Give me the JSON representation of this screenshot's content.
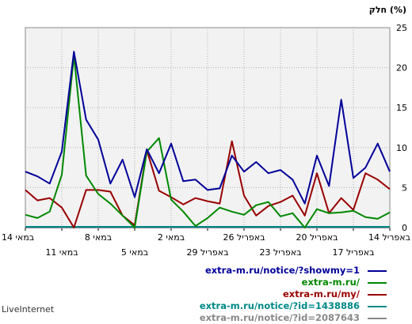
{
  "footer": {
    "brand": "LiveInternet"
  },
  "chart_data": {
    "type": "line",
    "ylabel": "חלק (%)",
    "ylim": [
      0,
      25
    ],
    "yticks": [
      0,
      5,
      10,
      15,
      20,
      25
    ],
    "grid": true,
    "x_labels_row1": [
      "14 במאי",
      "8 במאי",
      "2 במאי",
      "26 באפריל",
      "20 באפריל",
      "14 באפריל"
    ],
    "x_labels_row2": [
      "11 במאי",
      "5 במאי",
      "29 באפריל",
      "23 באפריל",
      "17 באפריל"
    ],
    "legend_position": "bottom-right",
    "series": [
      {
        "name": "extra-m.ru/notice/?showmy=1",
        "color": "#000099",
        "values": [
          7,
          6.4,
          5.5,
          9.5,
          22,
          13.5,
          11,
          5.5,
          8.5,
          3.8,
          9.8,
          6.8,
          10.5,
          5.8,
          6,
          4.7,
          4.9,
          9,
          7,
          8.2,
          6.8,
          7.2,
          6,
          3,
          9,
          5.2,
          16,
          6.2,
          7.5,
          10.5,
          7
        ]
      },
      {
        "name": "extra-m.ru/",
        "color": "#008800",
        "values": [
          1.6,
          1.2,
          2,
          6.6,
          21.5,
          6.5,
          4.2,
          3,
          1.5,
          0,
          9.5,
          11.2,
          3.5,
          2,
          0.2,
          1.2,
          2.5,
          2,
          1.6,
          2.8,
          3.2,
          1.4,
          1.8,
          0,
          2.3,
          1.8,
          1.9,
          2.1,
          1.3,
          1.1,
          1.9
        ]
      },
      {
        "name": "extra-m.ru/my/",
        "color": "#990000",
        "values": [
          4.7,
          3.4,
          3.7,
          2.5,
          0,
          4.7,
          4.7,
          4.5,
          1.5,
          0.3,
          9.7,
          4.6,
          3.8,
          2.9,
          3.7,
          3.3,
          3,
          10.8,
          4,
          1.5,
          2.7,
          3.2,
          4,
          1.5,
          6.8,
          1.8,
          3.7,
          2.2,
          6.8,
          6,
          4.8
        ]
      },
      {
        "name": "extra-m.ru/notice/?id=1438886",
        "color": "#008888",
        "values": [
          0.1,
          0.1,
          0.1,
          0.1,
          0.1,
          0.1,
          0.1,
          0.1,
          0.1,
          0.1,
          0.1,
          0.1,
          0.1,
          0.1,
          0.1,
          0.1,
          0.1,
          0.1,
          0.1,
          0.1,
          0.1,
          0.1,
          0.1,
          0.1,
          0.1,
          0.1,
          0.1,
          0.1,
          0.1,
          0.1,
          0.1
        ]
      },
      {
        "name": "extra-m.ru/notice/?id=2087643",
        "color": "#888888",
        "values": [
          0,
          0,
          0,
          0,
          0,
          0,
          0,
          0,
          0,
          0,
          0,
          0,
          0,
          0,
          0,
          0,
          0,
          0,
          0,
          0,
          0,
          0,
          0,
          0,
          0,
          0,
          0,
          0,
          0,
          0,
          0
        ]
      }
    ]
  }
}
